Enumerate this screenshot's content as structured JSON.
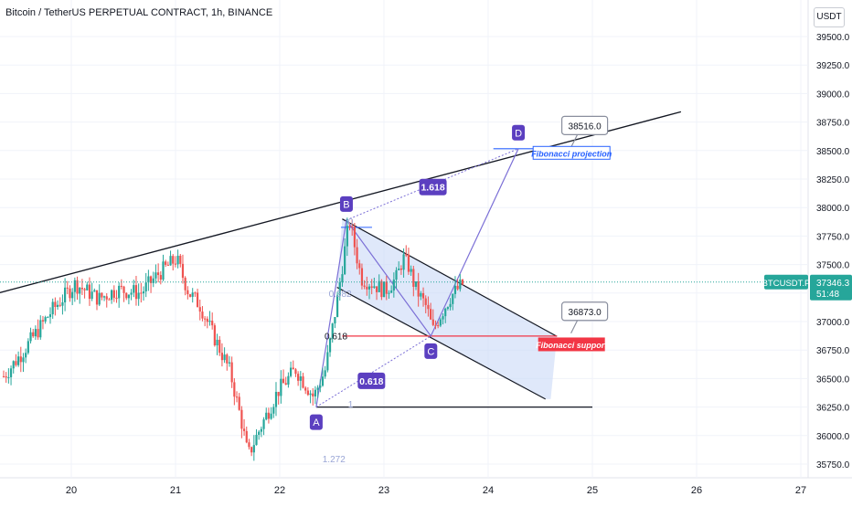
{
  "header": {
    "title": "Bitcoin / TetherUS PERPETUAL CONTRACT, 1h, BINANCE",
    "currency": "USDT"
  },
  "colors": {
    "up": "#26a69a",
    "down": "#ef5350",
    "trendline": "#131722",
    "pattern": "#7b6fd6",
    "channel_fill": "#c9d8f7",
    "projection_line": "#2962ff",
    "support_line": "#f23645",
    "label_purple": "#5b3fc0",
    "price_tag": "#26a69a"
  },
  "chart_data": {
    "type": "candlestick",
    "x_ticks": [
      "20",
      "21",
      "22",
      "23",
      "24",
      "25",
      "26",
      "27"
    ],
    "y_ticks": [
      "39500.0",
      "39250.0",
      "39000.0",
      "38750.0",
      "38500.0",
      "38250.0",
      "38000.0",
      "37750.0",
      "37500.0",
      "37250.0",
      "37000.0",
      "36750.0",
      "36500.0",
      "36250.0",
      "36000.0",
      "35750.0"
    ],
    "ylim": [
      35700,
      39620
    ],
    "last_price": {
      "symbol": "BTCUSDT.P",
      "price": "37346.3",
      "countdown": "51:48",
      "value": 37346.3
    },
    "candle_path": [
      [
        0,
        36520
      ],
      [
        3,
        36720
      ],
      [
        8,
        37090
      ],
      [
        12,
        37330
      ],
      [
        16,
        37200
      ],
      [
        19,
        37280
      ],
      [
        23,
        37250
      ],
      [
        26,
        37420
      ],
      [
        29,
        37550
      ],
      [
        31,
        37260
      ],
      [
        33,
        37140
      ],
      [
        35,
        36900
      ],
      [
        38,
        36560
      ],
      [
        40,
        36100
      ],
      [
        41,
        35820
      ],
      [
        43,
        36060
      ],
      [
        46,
        36390
      ],
      [
        49,
        36580
      ],
      [
        52,
        36340
      ],
      [
        54,
        36580
      ],
      [
        56,
        37200
      ],
      [
        57,
        37550
      ],
      [
        58,
        37890
      ],
      [
        60,
        37380
      ],
      [
        62,
        37330
      ],
      [
        64,
        37270
      ],
      [
        66,
        37390
      ],
      [
        67,
        37560
      ],
      [
        68,
        37480
      ],
      [
        69,
        37300
      ],
      [
        71,
        37120
      ],
      [
        72,
        36920
      ],
      [
        73,
        37030
      ],
      [
        75,
        37220
      ],
      [
        77,
        37330
      ]
    ],
    "pattern_points": [
      {
        "label": "A",
        "day": 22.35,
        "price": 36250
      },
      {
        "label": "B",
        "day": 22.64,
        "price": 37890
      },
      {
        "label": "C",
        "day": 23.45,
        "price": 36873
      },
      {
        "label": "D",
        "day": 24.29,
        "price": 38516
      }
    ],
    "trendline": [
      {
        "day": 19.3,
        "price": 37250
      },
      {
        "day": 25.85,
        "price": 38840
      }
    ],
    "channel": {
      "upper": [
        {
          "day": 22.6,
          "price": 37900
        },
        {
          "day": 24.66,
          "price": 36870
        }
      ],
      "lower": [
        {
          "day": 22.55,
          "price": 37300
        },
        {
          "day": 24.55,
          "price": 36320
        }
      ],
      "fill_right": [
        {
          "day": 24.66,
          "price": 36870
        },
        {
          "day": 24.6,
          "price": 36320
        }
      ]
    },
    "horizontal_levels": [
      {
        "name": "projection",
        "price": 38516,
        "from": 24.05,
        "to": 24.85
      },
      {
        "name": "support",
        "price": 36873,
        "from": 22.6,
        "to": 24.66
      },
      {
        "name": "base",
        "price": 36250,
        "from": 22.35,
        "to": 25.0
      }
    ],
    "fib_labels": [
      {
        "text": "1.618",
        "day": 23.47,
        "price": 38180,
        "kind": "box"
      },
      {
        "text": "0.618",
        "day": 22.88,
        "price": 36480,
        "kind": "box"
      },
      {
        "text": "0.618",
        "day": 22.54,
        "price": 36875,
        "kind": "plain"
      },
      {
        "text": "0.382",
        "day": 22.58,
        "price": 37250,
        "kind": "faint"
      },
      {
        "text": "1",
        "day": 22.68,
        "price": 36280,
        "kind": "faint"
      },
      {
        "text": "1.272",
        "day": 22.52,
        "price": 35800,
        "kind": "faint"
      },
      {
        "text": "0",
        "day": 22.68,
        "price": 37880,
        "kind": "faint"
      }
    ],
    "callouts": [
      {
        "text": "38516.0",
        "day": 24.9,
        "price": 38720
      },
      {
        "text": "36873.0",
        "day": 24.9,
        "price": 37090
      }
    ],
    "level_tags": [
      {
        "text": "Fibonacci projection",
        "day": 24.8,
        "price": 38480,
        "kind": "projection"
      },
      {
        "text": "Fibonacci support",
        "day": 24.8,
        "price": 36800,
        "kind": "support"
      }
    ]
  }
}
